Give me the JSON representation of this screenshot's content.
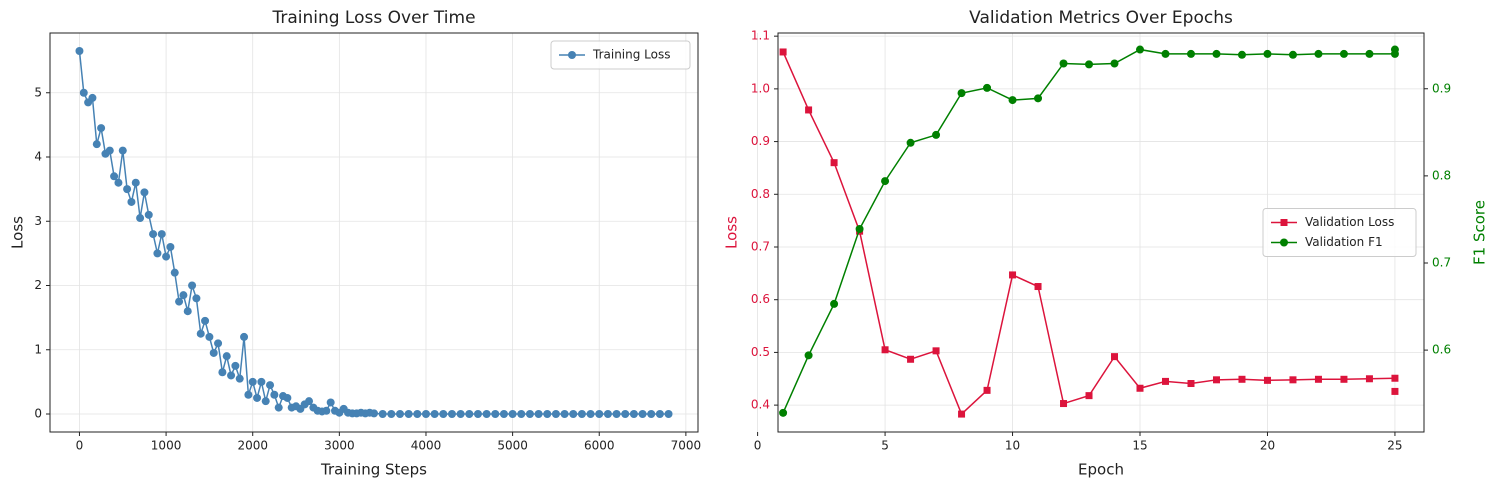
{
  "chart_data": [
    {
      "type": "line",
      "title": "Training Loss Over Time",
      "xlabel": "Training Steps",
      "ylabel": "Loss",
      "x": [
        0,
        50,
        100,
        150,
        200,
        250,
        300,
        350,
        400,
        450,
        500,
        550,
        600,
        650,
        700,
        750,
        800,
        850,
        900,
        950,
        1000,
        1050,
        1100,
        1150,
        1200,
        1250,
        1300,
        1350,
        1400,
        1450,
        1500,
        1550,
        1600,
        1650,
        1700,
        1750,
        1800,
        1850,
        1900,
        1950,
        2000,
        2050,
        2100,
        2150,
        2200,
        2250,
        2300,
        2350,
        2400,
        2450,
        2500,
        2550,
        2600,
        2650,
        2700,
        2750,
        2800,
        2850,
        2900,
        2950,
        3000,
        3050,
        3100,
        3150,
        3200,
        3250,
        3300,
        3350,
        3400,
        3500,
        3600,
        3700,
        3800,
        3900,
        4000,
        4100,
        4200,
        4300,
        4400,
        4500,
        4600,
        4700,
        4800,
        4900,
        5000,
        5100,
        5200,
        5300,
        5400,
        5500,
        5600,
        5700,
        5800,
        5900,
        6000,
        6100,
        6200,
        6300,
        6400,
        6500,
        6600,
        6700,
        6800
      ],
      "series": [
        {
          "name": "Training Loss",
          "color": "#4682b4",
          "marker": "o",
          "values": [
            5.65,
            5.0,
            4.85,
            4.92,
            4.2,
            4.45,
            4.05,
            4.1,
            3.7,
            3.6,
            4.1,
            3.5,
            3.3,
            3.6,
            3.05,
            3.45,
            3.1,
            2.8,
            2.5,
            2.8,
            2.45,
            2.6,
            2.2,
            1.75,
            1.85,
            1.6,
            2.0,
            1.8,
            1.25,
            1.45,
            1.2,
            0.95,
            1.1,
            0.65,
            0.9,
            0.6,
            0.75,
            0.55,
            1.2,
            0.3,
            0.5,
            0.25,
            0.5,
            0.2,
            0.45,
            0.3,
            0.1,
            0.28,
            0.25,
            0.1,
            0.12,
            0.08,
            0.15,
            0.2,
            0.1,
            0.05,
            0.04,
            0.05,
            0.18,
            0.05,
            0.02,
            0.08,
            0.02,
            0.01,
            0.01,
            0.02,
            0.01,
            0.02,
            0.01,
            0,
            0,
            0,
            0,
            0,
            0,
            0,
            0,
            0,
            0,
            0,
            0,
            0,
            0,
            0,
            0,
            0,
            0,
            0,
            0,
            0,
            0,
            0,
            0,
            0,
            0,
            0,
            0,
            0,
            0,
            0,
            0,
            0,
            0
          ]
        }
      ],
      "xlim": [
        -340,
        7140
      ],
      "ylim": [
        -0.28,
        5.93
      ],
      "xticks": [
        0,
        1000,
        2000,
        3000,
        4000,
        5000,
        6000,
        7000
      ],
      "yticks": [
        0,
        1,
        2,
        3,
        4,
        5
      ],
      "grid": true,
      "legend": "upper right"
    },
    {
      "type": "line",
      "title": "Validation Metrics Over Epochs",
      "xlabel": "Epoch",
      "ylabel": "Loss",
      "y2label": "F1 Score",
      "ycolor": "#dc143c",
      "y2color": "#008000",
      "x": [
        1,
        2,
        3,
        4,
        5,
        6,
        7,
        8,
        9,
        10,
        11,
        12,
        13,
        14,
        15,
        16,
        17,
        18,
        19,
        20,
        21,
        22,
        23,
        24,
        25
      ],
      "series": [
        {
          "name": "Validation Loss",
          "color": "#dc143c",
          "marker": "s",
          "values": [
            1.07,
            0.96,
            0.86,
            0.73,
            0.505,
            0.487,
            0.503,
            0.383,
            0.428,
            0.647,
            0.625,
            0.403,
            0.418,
            0.492,
            0.432,
            0.445,
            0.441,
            0.448,
            0.449,
            0.447,
            0.448,
            0.449,
            0.449,
            0.45,
            0.451
          ]
        },
        {
          "name": "Validation F1",
          "color": "#008000",
          "marker": "o",
          "axis": "y2",
          "values": [
            0.528,
            0.594,
            0.653,
            0.739,
            0.794,
            0.838,
            0.847,
            0.895,
            0.901,
            0.887,
            0.889,
            0.929,
            0.928,
            0.929,
            0.945,
            0.94,
            0.94,
            0.94,
            0.939,
            0.94,
            0.939,
            0.94,
            0.94,
            0.94,
            0.94
          ]
        }
      ],
      "extra_points": [
        {
          "series": 0,
          "x": 25,
          "y": 0.426
        },
        {
          "series": 1,
          "x": 25,
          "y": 0.945
        }
      ],
      "xlim": [
        0.8,
        26.14
      ],
      "ylim": [
        0.349,
        1.106
      ],
      "y2lim": [
        0.506,
        0.964
      ],
      "xticks": [
        0,
        5,
        10,
        15,
        20,
        25
      ],
      "yticks": [
        0.4,
        0.5,
        0.6,
        0.7,
        0.8,
        0.9,
        {
          "value": 1.0,
          "label": "1.0"
        },
        1.1
      ],
      "y2ticks": [
        0.6,
        0.7,
        0.8,
        0.9
      ],
      "grid": true,
      "legend": "center right"
    }
  ]
}
